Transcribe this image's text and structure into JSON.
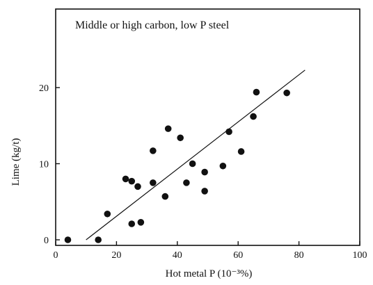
{
  "chart_data": {
    "type": "scatter",
    "title": "Middle or high carbon, low P steel",
    "xlabel": "Hot metal P (10⁻³%)",
    "ylabel": "Lime (kg/t)",
    "xlim": [
      0,
      100
    ],
    "ylim": [
      0,
      27
    ],
    "xticks": [
      0,
      20,
      40,
      60,
      80,
      100
    ],
    "yticks": [
      0,
      10,
      20
    ],
    "xtick_labels": [
      "0",
      "20",
      "40",
      "60",
      "80",
      "100"
    ],
    "ytick_labels": [
      "0",
      "10",
      "20"
    ],
    "grid": false,
    "points": [
      {
        "x": 4,
        "y": 0
      },
      {
        "x": 14,
        "y": 0
      },
      {
        "x": 17,
        "y": 3.4
      },
      {
        "x": 23,
        "y": 8
      },
      {
        "x": 25,
        "y": 7.7
      },
      {
        "x": 25,
        "y": 2.1
      },
      {
        "x": 27,
        "y": 7
      },
      {
        "x": 28,
        "y": 2.3
      },
      {
        "x": 32,
        "y": 11.7
      },
      {
        "x": 32,
        "y": 7.5
      },
      {
        "x": 36,
        "y": 5.7
      },
      {
        "x": 37,
        "y": 14.6
      },
      {
        "x": 41,
        "y": 13.4
      },
      {
        "x": 43,
        "y": 7.5
      },
      {
        "x": 45,
        "y": 10
      },
      {
        "x": 49,
        "y": 8.9
      },
      {
        "x": 49,
        "y": 6.4
      },
      {
        "x": 55,
        "y": 9.7
      },
      {
        "x": 57,
        "y": 14.2
      },
      {
        "x": 61,
        "y": 11.6
      },
      {
        "x": 65,
        "y": 16.2
      },
      {
        "x": 66,
        "y": 19.4
      },
      {
        "x": 76,
        "y": 19.3
      }
    ],
    "fit_line": {
      "x": [
        10,
        82
      ],
      "y": [
        0,
        22.3
      ]
    }
  }
}
